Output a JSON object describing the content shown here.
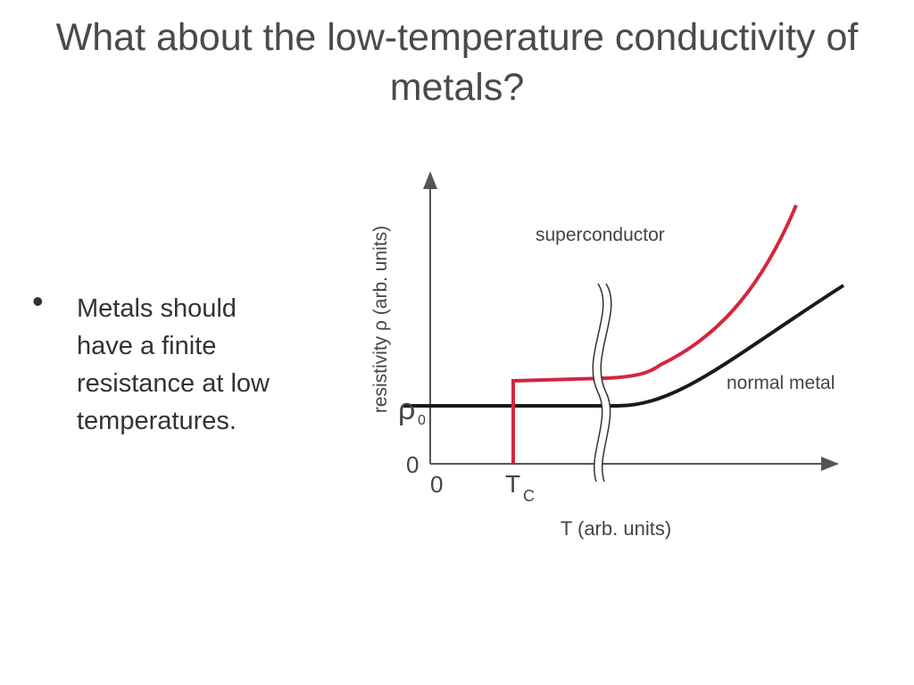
{
  "title": {
    "line1": "What about the low-temperature conductivity of",
    "line2": "metals?"
  },
  "bullets": [
    {
      "bullet": "•",
      "lines": [
        "Metals should",
        "have a finite",
        "resistance at low",
        "temperatures."
      ]
    }
  ],
  "diagram": {
    "y_axis_label": "resistivity ρ (arb. units)",
    "x_axis_label": "T (arb. units)",
    "rho0_symbol": "ρ",
    "rho0_subscript": "0",
    "y_zero": "0",
    "x_zero": "0",
    "tc_symbol": "T",
    "tc_subscript": "C",
    "superconductor_label": "superconductor",
    "normal_metal_label": "normal metal",
    "colors": {
      "superconductor": "#d3263f",
      "normal_metal": "#1a1a1a",
      "axes": "#555555"
    }
  }
}
